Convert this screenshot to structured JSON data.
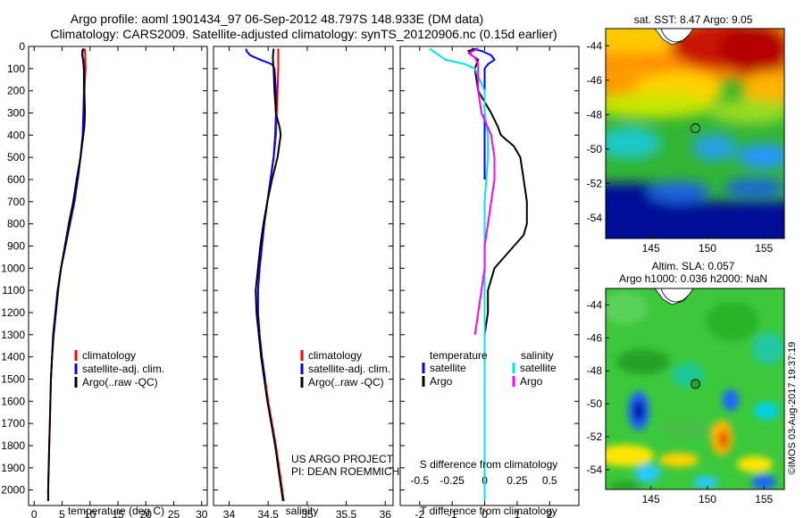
{
  "title": {
    "line1": "Argo profile: aoml 1901434_97 06-Sep-2012 48.797S 148.933E (DM data)",
    "line2": "Climatology: CARS2009. Satellite-adjusted climatology: synTS_20120906.nc (0.15d earlier)"
  },
  "colors": {
    "climatology": "#ff0000",
    "satellite": "#0000ff",
    "argo": "#000000",
    "salinity_satellite": "#00e5e5",
    "salinity_argo": "#ff00ff"
  },
  "chart_data": [
    {
      "type": "line",
      "name": "temperature-profile",
      "xlabel": "temperature (deg C)",
      "xlim": [
        -1,
        31
      ],
      "xticks": [
        0,
        5,
        10,
        15,
        20,
        25,
        30
      ],
      "ylim": [
        0,
        2070
      ],
      "yticks": [
        0,
        100,
        200,
        300,
        400,
        500,
        600,
        700,
        800,
        900,
        1000,
        1100,
        1200,
        1300,
        1400,
        1500,
        1600,
        1700,
        1800,
        1900,
        2000
      ],
      "y_inverted": true,
      "legend": {
        "position": "bottom-left",
        "entries": [
          "climatology",
          "satellite-adj. clim.",
          "Argo(..raw -QC)"
        ]
      },
      "series": [
        {
          "name": "climatology",
          "color": "#ff0000",
          "points": [
            [
              9.1,
              10
            ],
            [
              9.2,
              100
            ],
            [
              9.0,
              200
            ],
            [
              8.9,
              300
            ],
            [
              8.7,
              400
            ],
            [
              8.3,
              500
            ],
            [
              7.8,
              600
            ],
            [
              7.2,
              700
            ],
            [
              6.4,
              800
            ],
            [
              5.6,
              900
            ],
            [
              4.8,
              1000
            ],
            [
              4.2,
              1100
            ],
            [
              3.8,
              1200
            ],
            [
              3.4,
              1300
            ],
            [
              3.2,
              1400
            ],
            [
              3.0,
              1500
            ],
            [
              2.9,
              1600
            ],
            [
              2.8,
              1700
            ],
            [
              2.7,
              1800
            ],
            [
              2.6,
              1900
            ],
            [
              2.5,
              2000
            ],
            [
              2.5,
              2050
            ]
          ]
        },
        {
          "name": "satellite-adj. clim.",
          "color": "#0000ff",
          "points": [
            [
              8.8,
              10
            ],
            [
              8.6,
              20
            ],
            [
              8.7,
              50
            ],
            [
              8.9,
              100
            ],
            [
              8.9,
              200
            ],
            [
              8.8,
              300
            ],
            [
              8.7,
              400
            ],
            [
              8.3,
              500
            ],
            [
              7.8,
              600
            ],
            [
              7.2,
              700
            ],
            [
              6.4,
              800
            ],
            [
              5.6,
              900
            ],
            [
              4.8,
              1000
            ],
            [
              4.2,
              1100
            ],
            [
              3.8,
              1200
            ],
            [
              3.4,
              1300
            ],
            [
              3.2,
              1400
            ],
            [
              3.0,
              1500
            ]
          ]
        },
        {
          "name": "Argo(..raw -QC)",
          "color": "#000000",
          "points": [
            [
              8.9,
              10
            ],
            [
              8.7,
              20
            ],
            [
              8.6,
              40
            ],
            [
              8.8,
              60
            ],
            [
              8.9,
              100
            ],
            [
              9.0,
              200
            ],
            [
              9.1,
              300
            ],
            [
              9.0,
              360
            ],
            [
              8.8,
              400
            ],
            [
              8.3,
              500
            ],
            [
              7.6,
              600
            ],
            [
              7.0,
              700
            ],
            [
              6.2,
              800
            ],
            [
              5.5,
              900
            ],
            [
              4.8,
              1000
            ],
            [
              4.3,
              1100
            ],
            [
              3.9,
              1200
            ],
            [
              3.5,
              1300
            ],
            [
              3.2,
              1400
            ],
            [
              3.0,
              1500
            ],
            [
              2.9,
              1600
            ],
            [
              2.8,
              1700
            ],
            [
              2.7,
              1800
            ],
            [
              2.6,
              1900
            ],
            [
              2.5,
              2000
            ],
            [
              2.5,
              2050
            ]
          ]
        }
      ]
    },
    {
      "type": "line",
      "name": "salinity-profile",
      "xlabel": "salinity",
      "xlim": [
        33.8,
        36.1
      ],
      "xticks": [
        34,
        34.5,
        35,
        35.5,
        36
      ],
      "ylim": [
        0,
        2070
      ],
      "y_inverted": true,
      "legend": {
        "position": "bottom-left",
        "entries": [
          "climatology",
          "satellite-adj. clim.",
          "Argo(..raw -QC)"
        ]
      },
      "annotation": [
        "US ARGO PROJECT",
        "PI: DEAN ROEMMICH"
      ],
      "series": [
        {
          "name": "climatology",
          "color": "#ff0000",
          "points": [
            [
              34.63,
              10
            ],
            [
              34.63,
              100
            ],
            [
              34.62,
              200
            ],
            [
              34.61,
              300
            ],
            [
              34.6,
              400
            ],
            [
              34.57,
              500
            ],
            [
              34.53,
              600
            ],
            [
              34.49,
              700
            ],
            [
              34.45,
              800
            ],
            [
              34.42,
              900
            ],
            [
              34.39,
              1000
            ],
            [
              34.37,
              1100
            ],
            [
              34.37,
              1200
            ],
            [
              34.39,
              1300
            ],
            [
              34.42,
              1400
            ],
            [
              34.46,
              1500
            ],
            [
              34.5,
              1600
            ],
            [
              34.55,
              1700
            ],
            [
              34.6,
              1800
            ],
            [
              34.64,
              1900
            ],
            [
              34.68,
              2000
            ],
            [
              34.7,
              2050
            ]
          ]
        },
        {
          "name": "satellite-adj. clim.",
          "color": "#0000ff",
          "points": [
            [
              34.22,
              10
            ],
            [
              34.22,
              20
            ],
            [
              34.27,
              40
            ],
            [
              34.4,
              60
            ],
            [
              34.55,
              80
            ],
            [
              34.58,
              100
            ],
            [
              34.6,
              200
            ],
            [
              34.6,
              300
            ],
            [
              34.59,
              400
            ],
            [
              34.57,
              500
            ],
            [
              34.53,
              600
            ],
            [
              34.49,
              700
            ],
            [
              34.45,
              800
            ],
            [
              34.42,
              900
            ],
            [
              34.39,
              1000
            ],
            [
              34.37,
              1100
            ],
            [
              34.37,
              1200
            ],
            [
              34.39,
              1300
            ],
            [
              34.42,
              1400
            ],
            [
              34.46,
              1500
            ]
          ]
        },
        {
          "name": "Argo(..raw -QC)",
          "color": "#000000",
          "points": [
            [
              34.57,
              10
            ],
            [
              34.56,
              50
            ],
            [
              34.57,
              100
            ],
            [
              34.58,
              200
            ],
            [
              34.6,
              300
            ],
            [
              34.65,
              370
            ],
            [
              34.66,
              400
            ],
            [
              34.62,
              500
            ],
            [
              34.55,
              600
            ],
            [
              34.49,
              700
            ],
            [
              34.44,
              800
            ],
            [
              34.4,
              900
            ],
            [
              34.37,
              1000
            ],
            [
              34.34,
              1100
            ],
            [
              34.35,
              1200
            ],
            [
              34.38,
              1300
            ],
            [
              34.41,
              1400
            ],
            [
              34.45,
              1500
            ],
            [
              34.49,
              1600
            ],
            [
              34.54,
              1700
            ],
            [
              34.59,
              1800
            ],
            [
              34.63,
              1900
            ],
            [
              34.67,
              2000
            ],
            [
              34.69,
              2050
            ]
          ]
        }
      ]
    },
    {
      "type": "line",
      "name": "difference-profile",
      "xlabel": "T difference from climatology",
      "xlim": [
        -2.6,
        2.9
      ],
      "xticks": [
        -2,
        -1,
        0,
        1,
        2
      ],
      "x2label": "S difference from climatology",
      "x2ticks": [
        -0.5,
        -0.25,
        0,
        0.25,
        0.5
      ],
      "x2tick_labels": [
        "-0.5",
        "-0.25",
        "0",
        "0.25",
        "0.5"
      ],
      "ylim": [
        0,
        2070
      ],
      "y_inverted": true,
      "legend": {
        "position": "bottom",
        "temperature_heading": "temperature",
        "salinity_heading": "salinity",
        "entries": [
          "satellite",
          "Argo",
          "satellite",
          "Argo"
        ]
      },
      "series": [
        {
          "name": "temperature satellite",
          "color": "#0000ff",
          "points": [
            [
              -0.4,
              10
            ],
            [
              -0.1,
              20
            ],
            [
              0.2,
              40
            ],
            [
              0.3,
              60
            ],
            [
              0.1,
              80
            ],
            [
              0,
              100
            ],
            [
              0,
              300
            ],
            [
              0,
              600
            ]
          ]
        },
        {
          "name": "temperature Argo",
          "color": "#000000",
          "points": [
            [
              -0.2,
              10
            ],
            [
              -0.5,
              20
            ],
            [
              -0.4,
              40
            ],
            [
              -0.2,
              60
            ],
            [
              -0.3,
              100
            ],
            [
              -0.2,
              200
            ],
            [
              0.2,
              300
            ],
            [
              0.4,
              360
            ],
            [
              0.5,
              400
            ],
            [
              0.9,
              450
            ],
            [
              1.1,
              500
            ],
            [
              1.2,
              600
            ],
            [
              1.3,
              700
            ],
            [
              1.3,
              800
            ],
            [
              1.2,
              850
            ],
            [
              0.9,
              900
            ],
            [
              0.6,
              950
            ],
            [
              0.3,
              1000
            ],
            [
              0.1,
              1100
            ],
            [
              0.1,
              1200
            ],
            [
              0,
              1300
            ],
            [
              0,
              1500
            ],
            [
              0,
              1700
            ],
            [
              0,
              1900
            ],
            [
              0,
              2000
            ],
            [
              0,
              2050
            ]
          ]
        },
        {
          "name": "salinity satellite",
          "color": "#00e5e5",
          "points": [
            [
              -1.7,
              10
            ],
            [
              -1.5,
              30
            ],
            [
              -1.2,
              60
            ],
            [
              -0.6,
              80
            ],
            [
              -0.3,
              100
            ],
            [
              0,
              200
            ],
            [
              0,
              300
            ],
            [
              0.1,
              400
            ],
            [
              0.1,
              500
            ],
            [
              0,
              700
            ],
            [
              0,
              900
            ],
            [
              0,
              1100
            ],
            [
              0,
              1300
            ],
            [
              0,
              1500
            ],
            [
              0,
              1700
            ],
            [
              0,
              1900
            ],
            [
              0,
              2000
            ],
            [
              0,
              2050
            ]
          ]
        },
        {
          "name": "salinity Argo",
          "color": "#ff00ff",
          "points": [
            [
              -0.2,
              10
            ],
            [
              -0.5,
              30
            ],
            [
              -0.3,
              50
            ],
            [
              -0.2,
              80
            ],
            [
              -0.2,
              100
            ],
            [
              -0.2,
              200
            ],
            [
              -0.1,
              300
            ],
            [
              0.2,
              400
            ],
            [
              0.3,
              500
            ],
            [
              0.3,
              600
            ],
            [
              0.2,
              700
            ],
            [
              0.1,
              800
            ],
            [
              0,
              900
            ],
            [
              0,
              1000
            ],
            [
              -0.1,
              1100
            ],
            [
              -0.2,
              1200
            ],
            [
              -0.3,
              1300
            ]
          ]
        }
      ]
    },
    {
      "type": "heatmap",
      "name": "sst-map",
      "title": "sat. SST: 8.47  Argo: 9.05",
      "xlim": [
        141,
        156.8
      ],
      "xticks": [
        145,
        150,
        155
      ],
      "ylim": [
        -55.2,
        -43
      ],
      "yticks": [
        -44,
        -46,
        -48,
        -50,
        -52,
        -54
      ],
      "marker": {
        "lon": 148.933,
        "lat": -48.797
      }
    },
    {
      "type": "heatmap",
      "name": "sla-map",
      "title": "Altim. SLA: 0.057",
      "subtitle": "Argo h1000: 0.036 h2000: NaN",
      "xlim": [
        141,
        156.8
      ],
      "xticks": [
        145,
        150,
        155
      ],
      "ylim": [
        -55.2,
        -43
      ],
      "yticks": [
        -44,
        -46,
        -48,
        -50,
        -52,
        -54
      ],
      "marker": {
        "lon": 148.933,
        "lat": -48.797
      }
    }
  ],
  "credit": "©IMOS 03-Aug-2017 19:37:19"
}
